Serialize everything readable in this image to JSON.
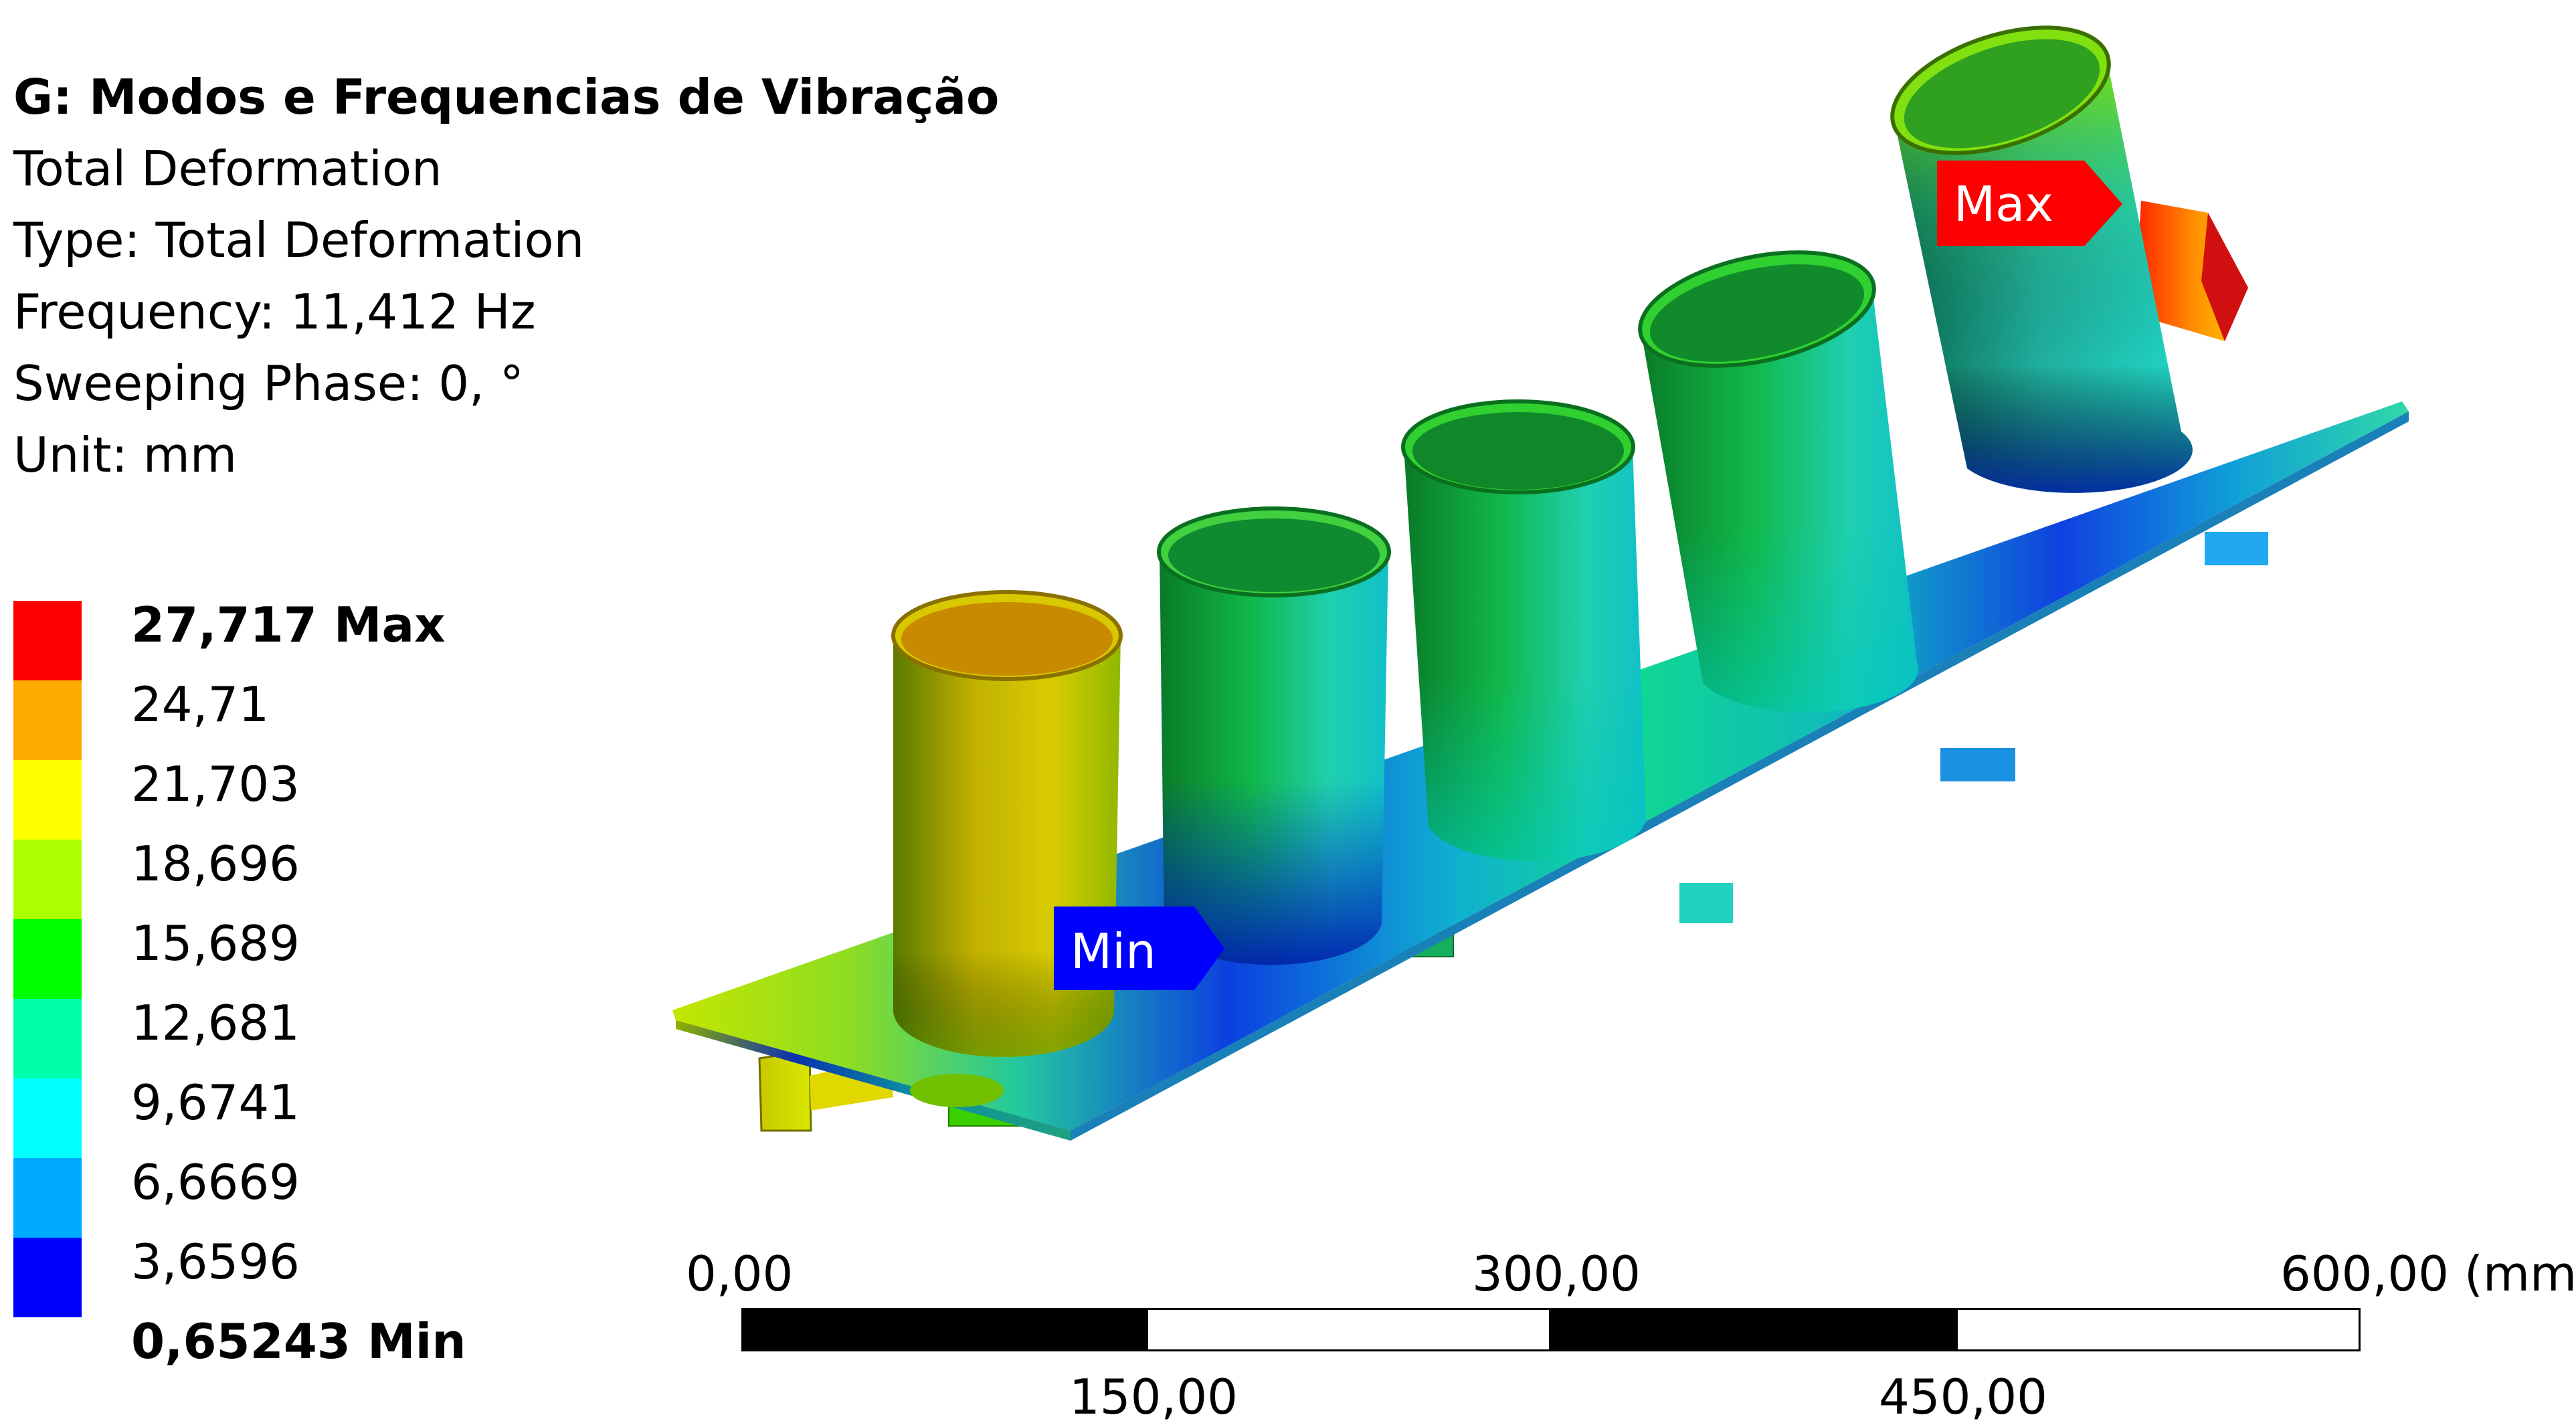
{
  "header": {
    "title": "G: Modos e Frequencias de Vibração",
    "result_name": "Total Deformation",
    "type": "Type: Total Deformation",
    "frequency": "Frequency: 11,412 Hz",
    "sweeping_phase": "Sweeping Phase: 0, °",
    "unit": "Unit: mm"
  },
  "legend": {
    "labels": [
      "27,717 Max",
      "24,71",
      "21,703",
      "18,696",
      "15,689",
      "12,681",
      "9,6741",
      "6,6669",
      "3,6596",
      "0,65243 Min"
    ],
    "colors": [
      "#ff0000",
      "#ffaa00",
      "#ffff00",
      "#aaff00",
      "#00ff00",
      "#00ffaa",
      "#00ffff",
      "#00aaff",
      "#0000ff"
    ]
  },
  "markers": {
    "max_label": "Max",
    "min_label": "Min",
    "max_color": "#ff0000",
    "min_color": "#0000ff"
  },
  "scale_bar": {
    "top_labels": [
      "0,00",
      "300,00",
      "600,00 (mm)"
    ],
    "bottom_labels": [
      "150,00",
      "450,00"
    ]
  }
}
